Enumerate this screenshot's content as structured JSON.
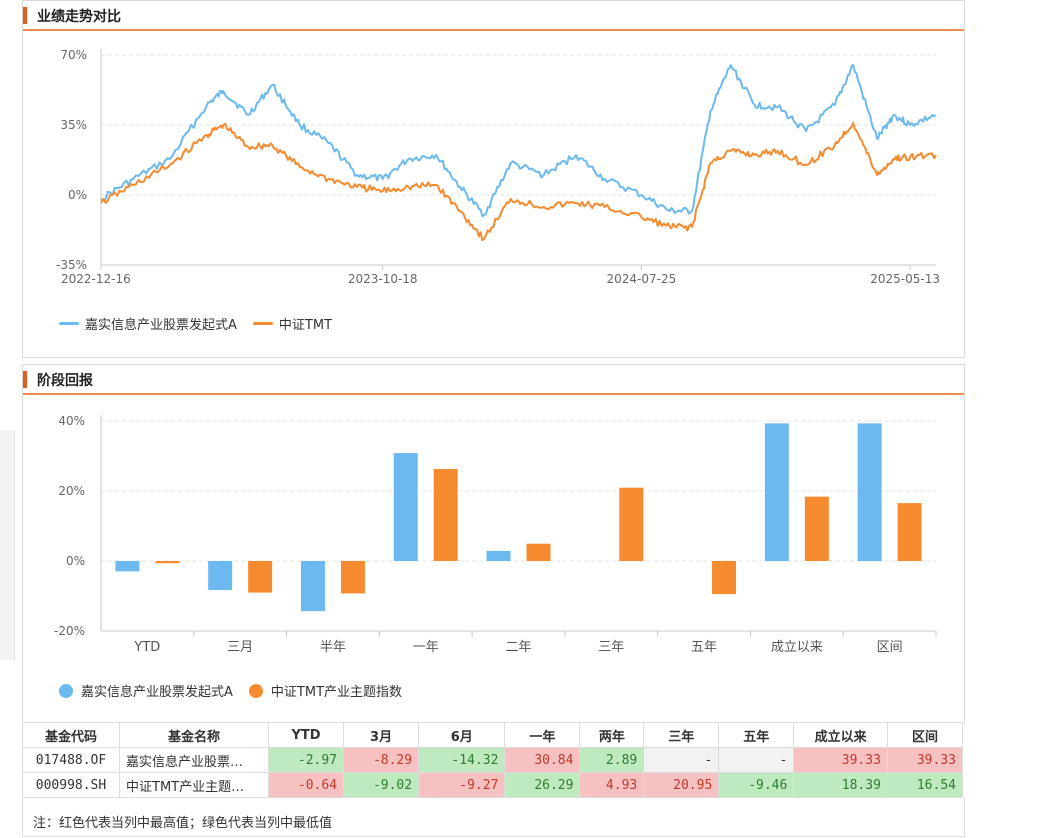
{
  "colors": {
    "fund": "#6bb9ee",
    "index": "#f58a2e",
    "high": "#f6c1c1",
    "low": "#bfe9bf"
  },
  "panel1": {
    "title": "业绩走势对比"
  },
  "panel2": {
    "title": "阶段回报"
  },
  "chart_data": [
    {
      "type": "line",
      "y_ticks": [
        "70%",
        "35%",
        "0%",
        "-35%"
      ],
      "ylim": [
        -35,
        70
      ],
      "x_ticks": [
        "2022-12-16",
        "2023-10-18",
        "2024-07-25",
        "2025-05-13"
      ],
      "grid": true,
      "legend_position": "bottom-left",
      "series": [
        {
          "name": "嘉实信息产业股票发起式A",
          "x": [
            "2022-12-16",
            "2023-01-20",
            "2023-03-01",
            "2023-04-10",
            "2023-04-28",
            "2023-05-25",
            "2023-06-20",
            "2023-07-20",
            "2023-08-20",
            "2023-09-20",
            "2023-10-18",
            "2023-11-15",
            "2023-12-15",
            "2024-01-10",
            "2024-02-05",
            "2024-03-05",
            "2024-04-10",
            "2024-05-15",
            "2024-06-15",
            "2024-07-25",
            "2024-08-25",
            "2024-09-18",
            "2024-10-08",
            "2024-10-30",
            "2024-11-25",
            "2024-12-20",
            "2025-01-20",
            "2025-02-20",
            "2025-03-12",
            "2025-04-07",
            "2025-04-25",
            "2025-05-13",
            "2025-06-10"
          ],
          "values": [
            -2,
            8,
            18,
            45,
            52,
            40,
            55,
            35,
            26,
            10,
            8,
            18,
            20,
            4,
            -10,
            16,
            10,
            20,
            8,
            0,
            -8,
            -8,
            42,
            65,
            45,
            44,
            32,
            45,
            65,
            28,
            40,
            35,
            40
          ]
        },
        {
          "name": "中证TMT",
          "x": [
            "2022-12-16",
            "2023-01-20",
            "2023-03-01",
            "2023-04-10",
            "2023-04-28",
            "2023-05-25",
            "2023-06-20",
            "2023-07-20",
            "2023-08-20",
            "2023-09-20",
            "2023-10-18",
            "2023-11-15",
            "2023-12-15",
            "2024-01-10",
            "2024-02-05",
            "2024-03-05",
            "2024-04-10",
            "2024-05-15",
            "2024-06-15",
            "2024-07-25",
            "2024-08-25",
            "2024-09-18",
            "2024-10-08",
            "2024-10-30",
            "2024-11-25",
            "2024-12-20",
            "2025-01-20",
            "2025-02-20",
            "2025-03-12",
            "2025-04-07",
            "2025-04-25",
            "2025-05-13",
            "2025-06-10"
          ],
          "values": [
            -4,
            5,
            15,
            30,
            35,
            24,
            25,
            14,
            8,
            4,
            2,
            4,
            5,
            -8,
            -22,
            -2,
            -6,
            -4,
            -6,
            -11,
            -16,
            -16,
            16,
            22,
            20,
            22,
            15,
            25,
            36,
            10,
            18,
            19,
            20
          ]
        }
      ]
    },
    {
      "type": "bar",
      "categories": [
        "YTD",
        "三月",
        "半年",
        "一年",
        "二年",
        "三年",
        "五年",
        "成立以来",
        "区间"
      ],
      "y_ticks": [
        "40%",
        "20%",
        "0%",
        "-20%"
      ],
      "ylim": [
        -20,
        40
      ],
      "grid": true,
      "legend_position": "bottom-left",
      "series": [
        {
          "name": "嘉实信息产业股票发起式A",
          "values": [
            -2.97,
            -8.29,
            -14.32,
            30.84,
            2.89,
            null,
            null,
            39.33,
            39.33
          ]
        },
        {
          "name": "中证TMT产业主题指数",
          "values": [
            -0.64,
            -9.02,
            -9.27,
            26.29,
            4.93,
            20.95,
            -9.46,
            18.39,
            16.54
          ]
        }
      ]
    }
  ],
  "table": {
    "headers": [
      "基金代码",
      "基金名称",
      "YTD",
      "3月",
      "6月",
      "一年",
      "两年",
      "三年",
      "五年",
      "成立以来",
      "区间"
    ],
    "rows": [
      {
        "cells": [
          "017488.OF",
          "嘉实信息产业股票…",
          "-2.97",
          "-8.29",
          "-14.32",
          "30.84",
          "2.89",
          "-",
          "-",
          "39.33",
          "39.33"
        ],
        "styles": [
          "",
          "",
          "lo",
          "hi",
          "lo",
          "hi",
          "lo",
          "na",
          "na",
          "hi",
          "hi"
        ]
      },
      {
        "cells": [
          "000998.SH",
          "中证TMT产业主题…",
          "-0.64",
          "-9.02",
          "-9.27",
          "26.29",
          "4.93",
          "20.95",
          "-9.46",
          "18.39",
          "16.54"
        ],
        "styles": [
          "",
          "",
          "hi",
          "lo",
          "hi",
          "lo",
          "hi",
          "hi",
          "lo",
          "lo",
          "lo"
        ]
      }
    ]
  },
  "note": "注：红色代表当列中最高值；绿色代表当列中最低值"
}
